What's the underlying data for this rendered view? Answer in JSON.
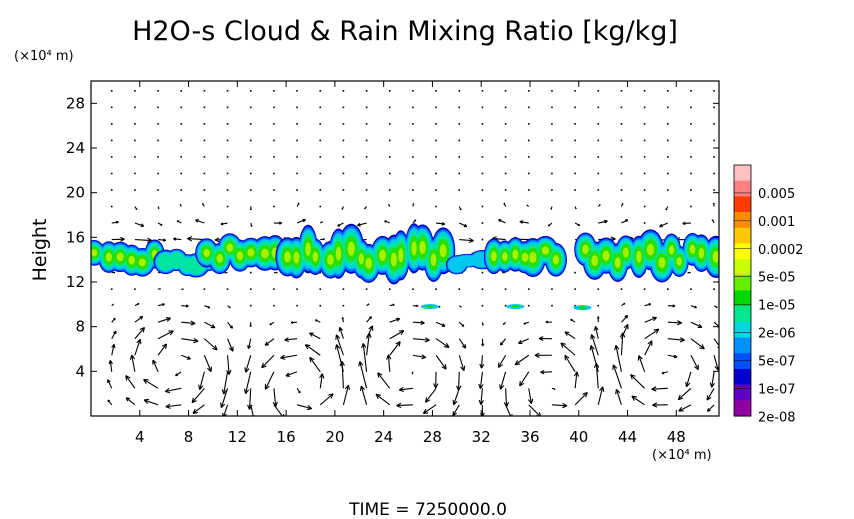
{
  "chart_data": {
    "type": "heatmap",
    "title": "H2O-s Cloud & Rain Mixing Ratio [kg/kg]",
    "xlabel": "",
    "ylabel": "Height",
    "x_unit": "(×10⁴ m)",
    "y_unit": "(×10⁴ m)",
    "xlim": [
      0,
      51.5
    ],
    "ylim": [
      0,
      30
    ],
    "x_ticks": [
      4,
      8,
      12,
      16,
      20,
      24,
      28,
      32,
      36,
      40,
      44,
      48
    ],
    "y_ticks": [
      4,
      8,
      12,
      16,
      20,
      24,
      28
    ],
    "time_label": "TIME = 7250000.0",
    "colorbar": {
      "labels": [
        "0.005",
        "0.001",
        "0.0002",
        "5e-05",
        "1e-05",
        "2e-06",
        "5e-07",
        "1e-07",
        "2e-08"
      ],
      "colors": [
        "#ffc0c0",
        "#ff8080",
        "#ff3c00",
        "#ff8c00",
        "#ffc800",
        "#ffff00",
        "#c8ff00",
        "#60f000",
        "#00d800",
        "#00e890",
        "#00d8e0",
        "#0090ff",
        "#0050ff",
        "#0000d0",
        "#6000c0",
        "#9000a0"
      ]
    },
    "cloud_band": {
      "bottom_km": [
        12.5,
        16.0
      ],
      "segments": [
        {
          "x": [
            0,
            5.5
          ],
          "y": [
            12.8,
            15.6
          ]
        },
        {
          "x": [
            5.5,
            10.0
          ],
          "y": [
            12.5,
            14.8
          ]
        },
        {
          "x": [
            9.0,
            15.5
          ],
          "y": [
            13.0,
            16.2
          ]
        },
        {
          "x": [
            15.5,
            29.5
          ],
          "y": [
            12.3,
            16.5
          ]
        },
        {
          "x": [
            29.5,
            32.5
          ],
          "y": [
            13.0,
            14.6
          ]
        },
        {
          "x": [
            32.5,
            38.5
          ],
          "y": [
            12.8,
            16.0
          ]
        },
        {
          "x": [
            40.0,
            51.5
          ],
          "y": [
            12.5,
            16.2
          ]
        }
      ],
      "small_features": [
        {
          "x": 27.8,
          "y": 9.8
        },
        {
          "x": 34.8,
          "y": 9.8
        },
        {
          "x": 40.3,
          "y": 9.7
        }
      ]
    },
    "circulation_cells": [
      {
        "x": 7.0,
        "y": 4.5,
        "rotation": "clockwise"
      },
      {
        "x": 17.5,
        "y": 2.8,
        "rotation": "counterclockwise"
      },
      {
        "x": 26.0,
        "y": 4.0,
        "rotation": "clockwise"
      },
      {
        "x": 38.0,
        "y": 2.8,
        "rotation": "counterclockwise"
      },
      {
        "x": 47.0,
        "y": 4.5,
        "rotation": "clockwise"
      }
    ]
  }
}
